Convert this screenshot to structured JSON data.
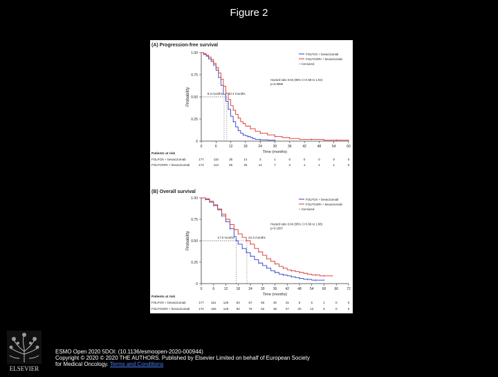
{
  "page": {
    "title": "Figure 2"
  },
  "colors": {
    "blue": "#2b3fc2",
    "red": "#d9332c",
    "black": "#000000"
  },
  "panels": [
    {
      "id": "pfs",
      "title": "(A) Progression-free survival",
      "legend": [
        "FOLFOX + bevacizumab",
        "FOLFOXIRI + bevacizumab",
        "+ Censored"
      ],
      "hr_text": [
        "Hazard ratio 0.84 (95% CI 0.68 to 1.03)",
        "p=0.0965"
      ],
      "median_labels": [
        "9.3 months",
        "10.4 months"
      ],
      "ylabel": "Probability",
      "xlabel": "Time (months)",
      "yticks": [
        "1.00",
        "0.75",
        "0.50",
        "0.25",
        "0"
      ],
      "xticks": [
        "0",
        "6",
        "12",
        "18",
        "24",
        "30",
        "36",
        "42",
        "48",
        "54",
        "60"
      ],
      "risk_header": "Patients at risk",
      "risk_rows": [
        {
          "label": "FOLFOX + bevacizumab",
          "values": [
            "177",
            "110",
            "35",
            "14",
            "3",
            "1",
            "0",
            "0",
            "0",
            "0",
            "0"
          ]
        },
        {
          "label": "FOLFOXIRI + bevacizumab",
          "values": [
            "172",
            "113",
            "56",
            "25",
            "14",
            "7",
            "3",
            "1",
            "1",
            "1",
            "0"
          ]
        }
      ]
    },
    {
      "id": "os",
      "title": "(B) Overall survival",
      "legend": [
        "FOLFOX + bevacizumab",
        "FOLFOXIRI + bevacizumab",
        "+ Censored"
      ],
      "hr_text": [
        "Hazard ratio 0.84 (95% CI 0.66 to 1.08)",
        "p=0.1567"
      ],
      "median_labels": [
        "17.0 months",
        "22.3 months"
      ],
      "ylabel": "Probability",
      "xlabel": "Time (months)",
      "yticks": [
        "1.00",
        "0.75",
        "0.50",
        "0.25",
        "0"
      ],
      "xticks": [
        "0",
        "6",
        "12",
        "18",
        "24",
        "30",
        "36",
        "42",
        "48",
        "54",
        "60",
        "66",
        "72"
      ],
      "risk_header": "Patients at risk",
      "risk_rows": [
        {
          "label": "FOLFOX + bevacizumab",
          "values": [
            "177",
            "161",
            "125",
            "84",
            "67",
            "50",
            "30",
            "15",
            "5",
            "5",
            "1",
            "0",
            "0"
          ]
        },
        {
          "label": "FOLFOXIRI + bevacizumab",
          "values": [
            "172",
            "160",
            "125",
            "94",
            "76",
            "52",
            "36",
            "27",
            "20",
            "13",
            "5",
            "0",
            "0"
          ]
        }
      ]
    }
  ],
  "chart_data": [
    {
      "type": "line",
      "title": "(A) Progression-free survival",
      "xlabel": "Time (months)",
      "ylabel": "Probability",
      "xlim": [
        0,
        60
      ],
      "ylim": [
        0,
        1
      ],
      "median_x": [
        9.3,
        10.4
      ],
      "series": [
        {
          "name": "FOLFOX + bevacizumab",
          "x": [
            0,
            1,
            2,
            3,
            4,
            5,
            6,
            7,
            8,
            9,
            10,
            11,
            12,
            13,
            14,
            15,
            16,
            17,
            18,
            19,
            20,
            21,
            22,
            24,
            27,
            30
          ],
          "y": [
            1,
            0.98,
            0.96,
            0.93,
            0.9,
            0.86,
            0.8,
            0.72,
            0.63,
            0.53,
            0.45,
            0.36,
            0.28,
            0.22,
            0.16,
            0.12,
            0.09,
            0.07,
            0.06,
            0.05,
            0.04,
            0.03,
            0.02,
            0.015,
            0.01,
            0.01
          ]
        },
        {
          "name": "FOLFOXIRI + bevacizumab",
          "x": [
            0,
            1,
            2,
            3,
            4,
            5,
            6,
            7,
            8,
            9,
            10,
            11,
            12,
            13,
            14,
            15,
            16,
            17,
            18,
            20,
            22,
            24,
            27,
            30,
            33,
            36,
            40,
            45,
            50,
            55,
            60
          ],
          "y": [
            1,
            0.99,
            0.97,
            0.95,
            0.92,
            0.88,
            0.83,
            0.77,
            0.7,
            0.62,
            0.54,
            0.47,
            0.4,
            0.35,
            0.3,
            0.26,
            0.22,
            0.2,
            0.17,
            0.14,
            0.11,
            0.09,
            0.07,
            0.05,
            0.04,
            0.03,
            0.02,
            0.02,
            0.01,
            0.01,
            0
          ]
        }
      ]
    },
    {
      "type": "line",
      "title": "(B) Overall survival",
      "xlabel": "Time (months)",
      "ylabel": "Probability",
      "xlim": [
        0,
        72
      ],
      "ylim": [
        0,
        1
      ],
      "median_x": [
        17.0,
        22.3
      ],
      "series": [
        {
          "name": "FOLFOX + bevacizumab",
          "x": [
            0,
            2,
            4,
            6,
            8,
            10,
            12,
            14,
            16,
            17,
            18,
            20,
            22,
            24,
            26,
            28,
            30,
            32,
            34,
            36,
            38,
            40,
            42,
            44,
            46,
            48,
            50,
            52,
            54,
            56,
            58,
            60
          ],
          "y": [
            1,
            0.98,
            0.95,
            0.91,
            0.86,
            0.79,
            0.72,
            0.64,
            0.55,
            0.5,
            0.46,
            0.41,
            0.36,
            0.32,
            0.28,
            0.24,
            0.21,
            0.18,
            0.15,
            0.13,
            0.11,
            0.1,
            0.09,
            0.08,
            0.07,
            0.06,
            0.05,
            0.05,
            0.04,
            0.04,
            0.04,
            0.04
          ]
        },
        {
          "name": "FOLFOXIRI + bevacizumab",
          "x": [
            0,
            2,
            4,
            6,
            8,
            10,
            12,
            14,
            16,
            18,
            20,
            22,
            22.3,
            24,
            26,
            28,
            30,
            32,
            34,
            36,
            38,
            40,
            42,
            44,
            46,
            48,
            50,
            52,
            54,
            56,
            58,
            60,
            62,
            64
          ],
          "y": [
            1,
            0.99,
            0.96,
            0.92,
            0.87,
            0.81,
            0.75,
            0.69,
            0.63,
            0.58,
            0.54,
            0.5,
            0.5,
            0.46,
            0.41,
            0.37,
            0.33,
            0.29,
            0.26,
            0.23,
            0.2,
            0.18,
            0.16,
            0.15,
            0.14,
            0.13,
            0.12,
            0.11,
            0.1,
            0.1,
            0.09,
            0.09,
            0.09,
            0.09
          ]
        }
      ]
    }
  ],
  "citation": {
    "line1": "ESMO Open 2020 5DOI: (10.1136/esmoopen-2020-000944)",
    "line2": "Copyright © 2020 © 2020 THE AUTHORS. Published by Elsevier Limited on behalf of European Society",
    "line3_prefix": "for Medical Oncology. ",
    "link": "Terms and Conditions"
  },
  "logo": {
    "text": "ELSEVIER"
  }
}
